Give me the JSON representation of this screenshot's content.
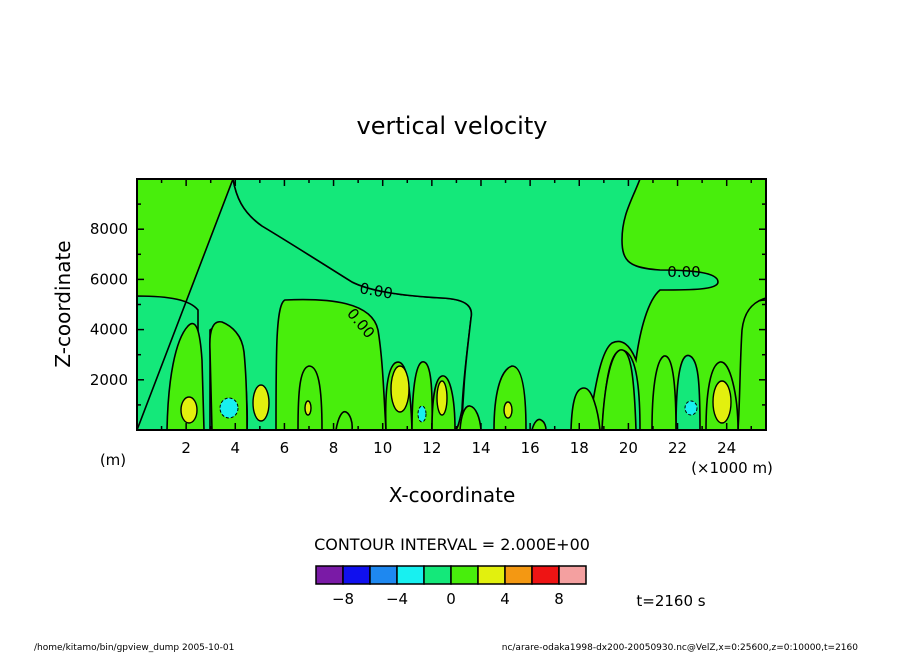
{
  "chart_data": {
    "type": "contour",
    "title": "vertical velocity",
    "xlabel": "X-coordinate",
    "ylabel": "Z-coordinate",
    "x_unit_label": "(×1000 m)",
    "y_unit_label": "(m)",
    "xlim": [
      0,
      25.6
    ],
    "ylim": [
      0,
      10000
    ],
    "x_ticks": [
      2,
      4,
      6,
      8,
      10,
      12,
      14,
      16,
      18,
      20,
      22,
      24
    ],
    "x_tick_labels": [
      "2",
      "4",
      "6",
      "8",
      "10",
      "12",
      "14",
      "16",
      "18",
      "20",
      "22",
      "24"
    ],
    "y_ticks": [
      2000,
      4000,
      6000,
      8000
    ],
    "y_tick_labels": [
      "2000",
      "4000",
      "6000",
      "8000"
    ],
    "contour_interval_text": "CONTOUR INTERVAL = 2.000E+00",
    "contour_labels": [
      "0.00",
      "0.00",
      "0.00"
    ],
    "colorbar": {
      "levels": [
        -10,
        -8,
        -6,
        -4,
        -2,
        0,
        2,
        4,
        6,
        8,
        10
      ],
      "colors": [
        "#7a1aa6",
        "#1010ee",
        "#1e88f0",
        "#18f0f0",
        "#14e87a",
        "#48ee0c",
        "#e2f00e",
        "#f49812",
        "#ee1414",
        "#f4a0a0"
      ],
      "tick_values": [
        -8,
        -4,
        0,
        4,
        8
      ],
      "tick_labels": [
        "−8",
        "−4",
        "0",
        "4",
        "8"
      ]
    },
    "time_label": "t=2160 s"
  },
  "footer": {
    "left": "/home/kitamo/bin/gpview_dump   2005-10-01",
    "right": "nc/arare-odaka1998-dx200-20050930.nc@VelZ,x=0:25600,z=0:10000,t=2160"
  }
}
